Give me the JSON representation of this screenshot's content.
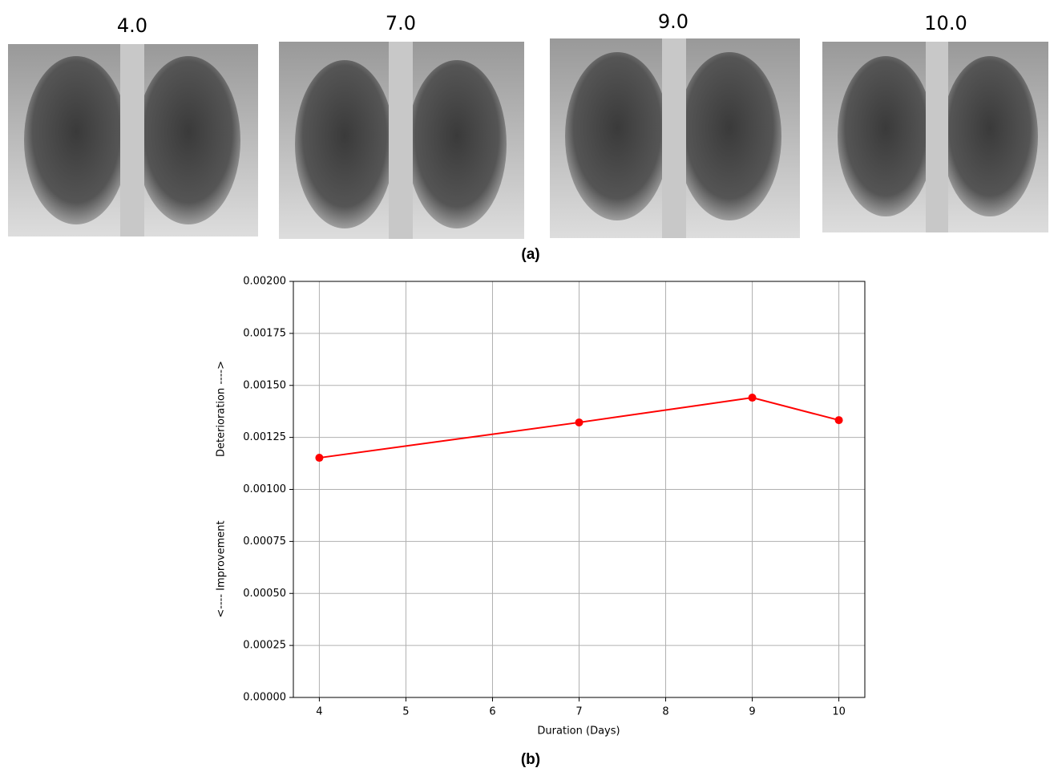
{
  "panel_a": {
    "images": [
      {
        "title": "4.0"
      },
      {
        "title": "7.0"
      },
      {
        "title": "9.0"
      },
      {
        "title": "10.0"
      }
    ],
    "caption": "(a)"
  },
  "chart_data": {
    "type": "line",
    "x": [
      4,
      7,
      9,
      10
    ],
    "series": [
      {
        "color": "#ff0000",
        "values": [
          0.001152,
          0.001322,
          0.001441,
          0.001333
        ]
      }
    ],
    "xlabel": "Duration (Days)",
    "ylabel": [
      "<---- Improvement",
      "Deterioration ---->"
    ],
    "xlim": [
      3.7,
      10.3
    ],
    "xticks": [
      4,
      5,
      6,
      7,
      8,
      9,
      10
    ],
    "ylim": [
      0,
      0.002
    ],
    "yticks": [
      {
        "value": 0,
        "label": "0.00000"
      },
      {
        "value": 0.00025,
        "label": "0.00025"
      },
      {
        "value": 0.0005,
        "label": "0.00050"
      },
      {
        "value": 0.00075,
        "label": "0.00075"
      },
      {
        "value": 0.001,
        "label": "0.00100"
      },
      {
        "value": 0.00125,
        "label": "0.00125"
      },
      {
        "value": 0.0015,
        "label": "0.00150"
      },
      {
        "value": 0.00175,
        "label": "0.00175"
      },
      {
        "value": 0.002,
        "label": "0.00200"
      }
    ],
    "grid": true
  },
  "caption_b": "(b)"
}
